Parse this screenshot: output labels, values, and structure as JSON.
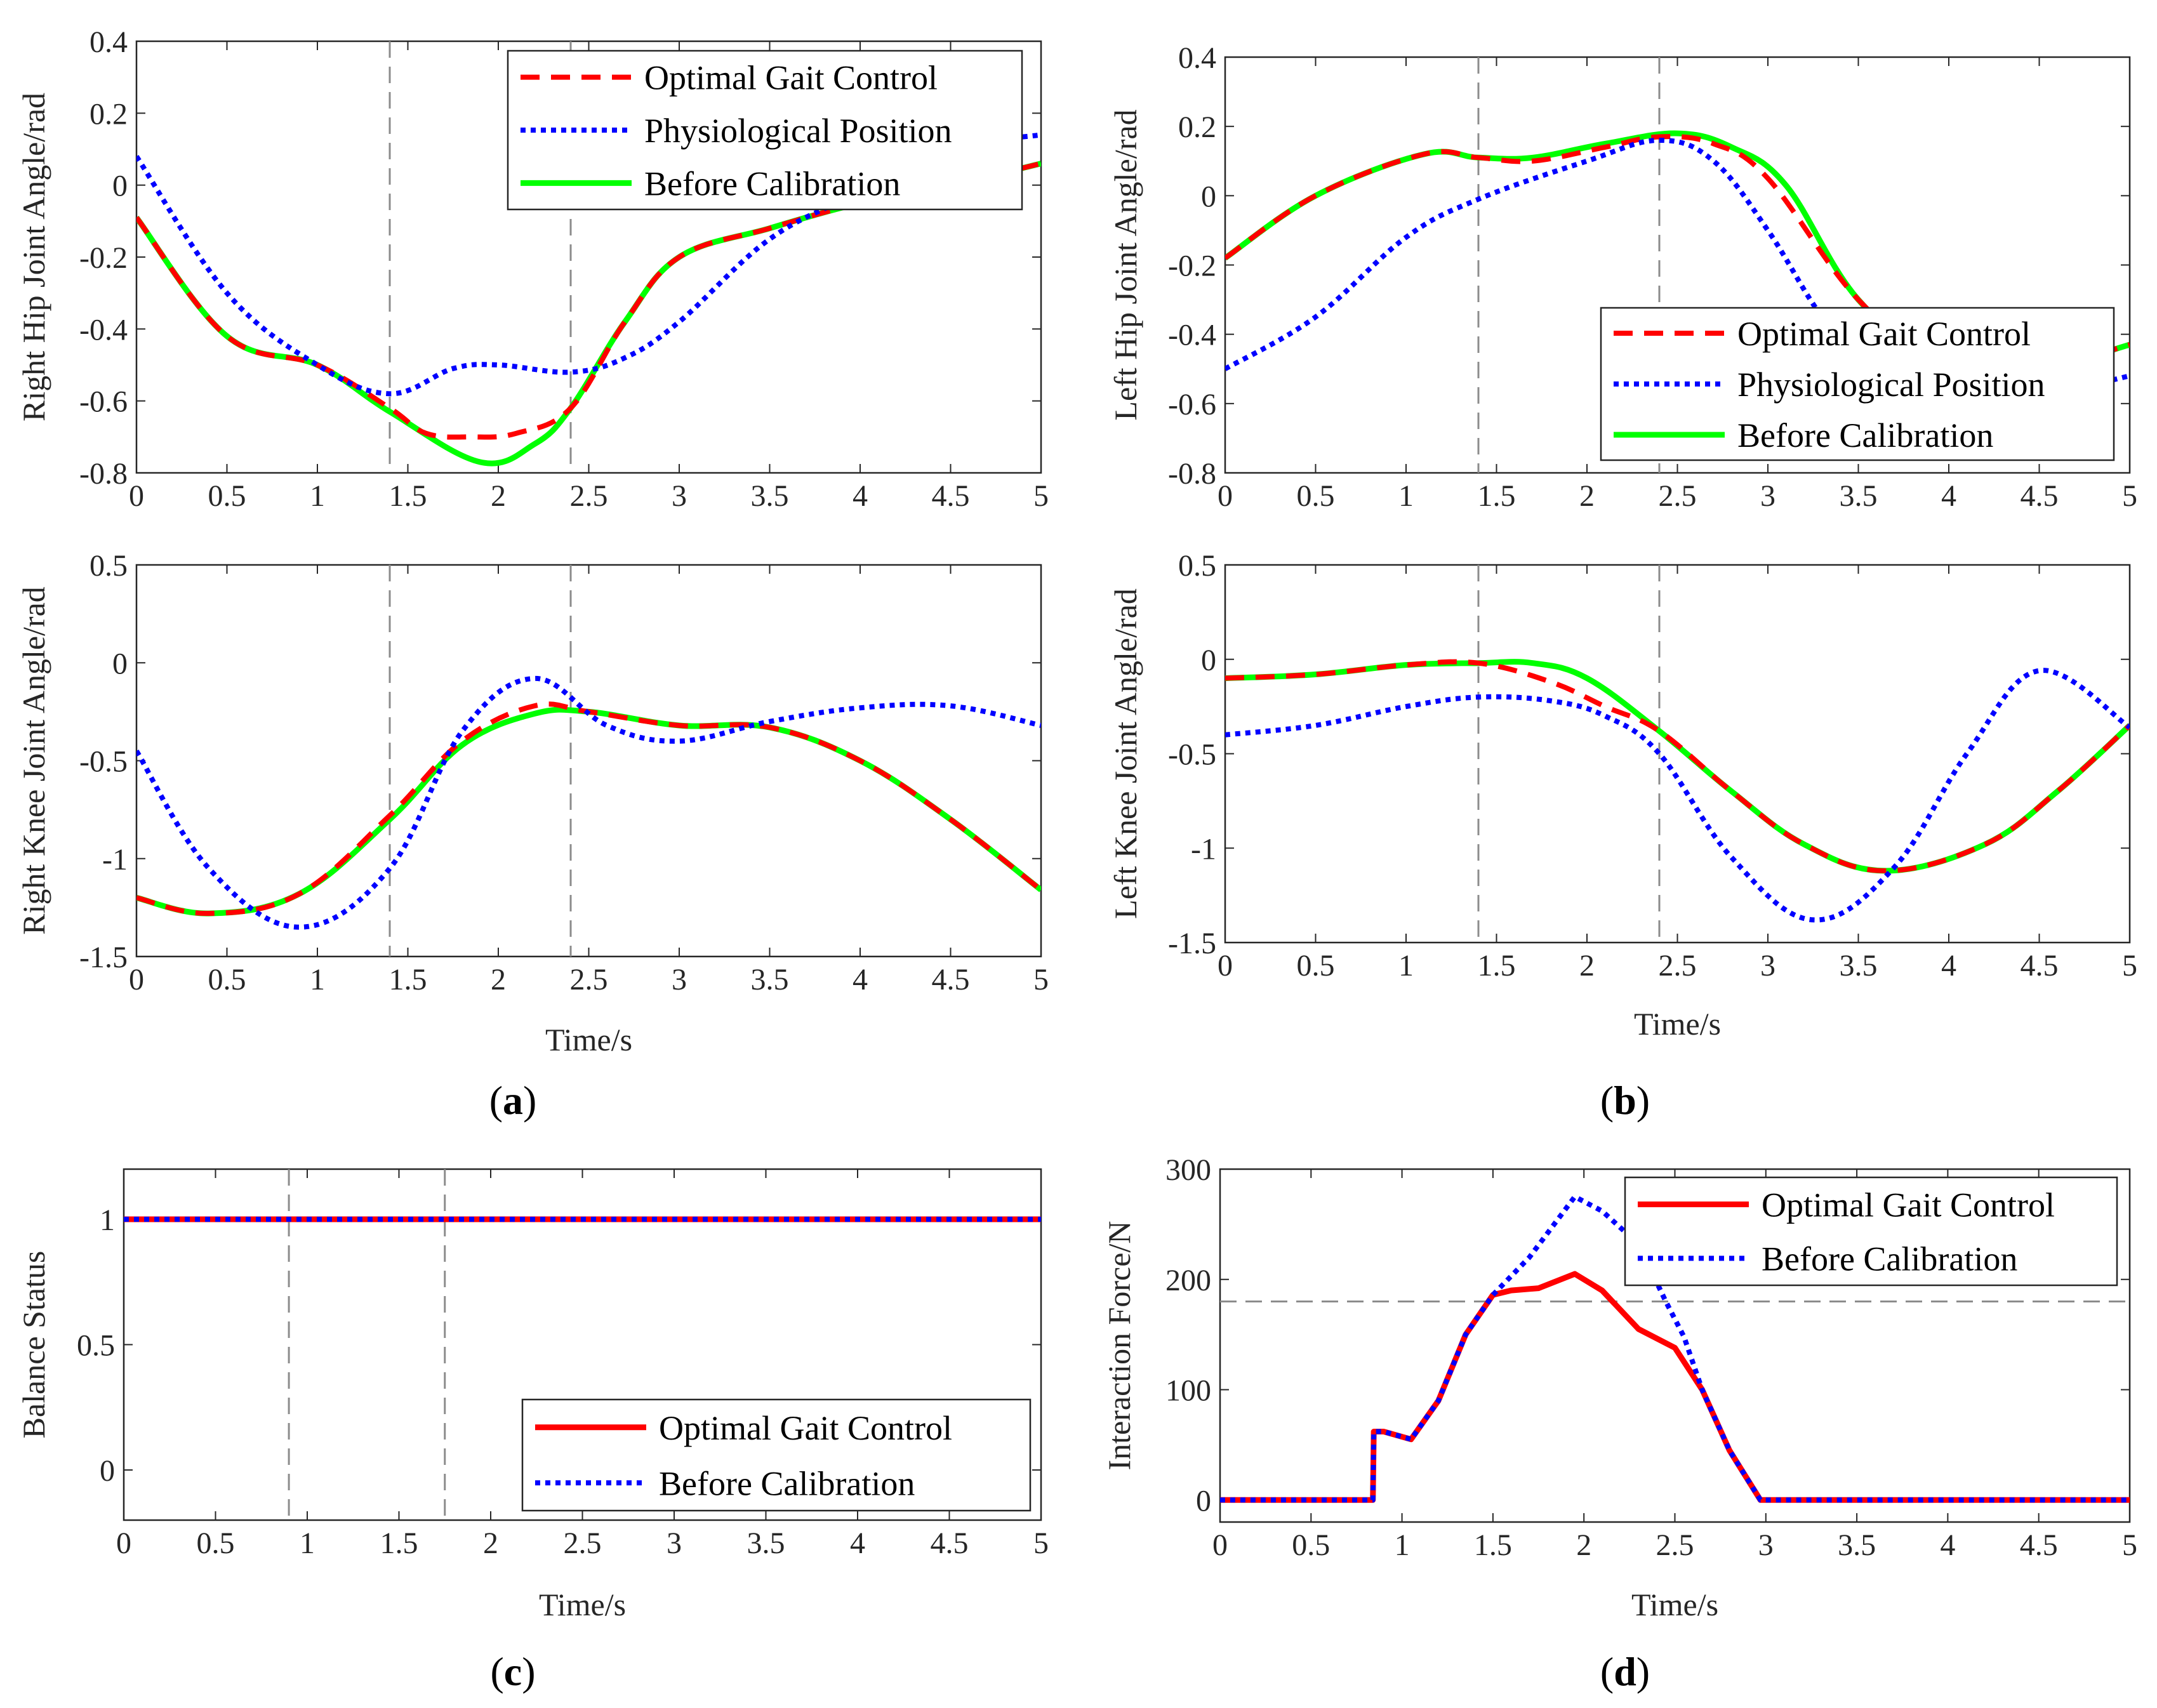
{
  "figure": {
    "panel_labels": [
      "a",
      "b",
      "c",
      "d"
    ]
  },
  "chart_data": [
    {
      "id": "a1",
      "type": "line",
      "title": "",
      "xlabel": "",
      "ylabel": "Right Hip Joint Angle/rad",
      "xlim": [
        0,
        5
      ],
      "ylim": [
        -0.8,
        0.4
      ],
      "xticks": [
        0,
        0.5,
        1,
        1.5,
        2,
        2.5,
        3,
        3.5,
        4,
        4.5,
        5
      ],
      "yticks": [
        -0.8,
        -0.6,
        -0.4,
        -0.2,
        0,
        0.2,
        0.4
      ],
      "vlines": [
        1.4,
        2.4
      ],
      "legend": "top-right",
      "series": [
        {
          "name": "Optimal Gait Control",
          "style": "dashed",
          "color": "#ff0000",
          "x": [
            0,
            0.5,
            1,
            1.4,
            1.6,
            1.85,
            2.1,
            2.4,
            2.7,
            3,
            3.5,
            4,
            4.5,
            5
          ],
          "y": [
            -0.09,
            -0.42,
            -0.5,
            -0.62,
            -0.69,
            -0.7,
            -0.69,
            -0.62,
            -0.38,
            -0.2,
            -0.12,
            -0.05,
            0,
            0.06
          ]
        },
        {
          "name": "Physiological Position",
          "style": "dotted",
          "color": "#0000ff",
          "x": [
            0,
            0.5,
            1,
            1.4,
            1.75,
            2,
            2.4,
            2.7,
            3,
            3.5,
            4,
            4.5,
            5
          ],
          "y": [
            0.08,
            -0.3,
            -0.5,
            -0.58,
            -0.51,
            -0.5,
            -0.52,
            -0.48,
            -0.38,
            -0.15,
            -0.02,
            0.1,
            0.14
          ]
        },
        {
          "name": "Before Calibration",
          "style": "solid",
          "color": "#00ff00",
          "x": [
            0,
            0.5,
            1,
            1.4,
            1.9,
            2.2,
            2.4,
            2.7,
            3,
            3.5,
            4,
            4.5,
            5
          ],
          "y": [
            -0.09,
            -0.42,
            -0.5,
            -0.63,
            -0.77,
            -0.72,
            -0.62,
            -0.38,
            -0.2,
            -0.12,
            -0.05,
            0,
            0.06
          ]
        }
      ]
    },
    {
      "id": "a2",
      "type": "line",
      "title": "",
      "xlabel": "Time/s",
      "ylabel": "Right Knee Joint Angle/rad",
      "xlim": [
        0,
        5
      ],
      "ylim": [
        -1.5,
        0.5
      ],
      "xticks": [
        0,
        0.5,
        1,
        1.5,
        2,
        2.5,
        3,
        3.5,
        4,
        4.5,
        5
      ],
      "yticks": [
        -1.5,
        -1,
        -0.5,
        0
      ],
      "ytick_labels": [
        "-1.5",
        "-1",
        "-0.5",
        "0",
        "0.5"
      ],
      "vlines": [
        1.4,
        2.4
      ],
      "series": [
        {
          "name": "Optimal Gait Control",
          "style": "dashed",
          "color": "#ff0000",
          "x": [
            0,
            0.4,
            0.9,
            1.4,
            1.8,
            2.2,
            2.5,
            3,
            3.5,
            4,
            4.5,
            5
          ],
          "y": [
            -1.2,
            -1.28,
            -1.18,
            -0.78,
            -0.4,
            -0.22,
            -0.25,
            -0.32,
            -0.33,
            -0.5,
            -0.8,
            -1.16
          ]
        },
        {
          "name": "Physiological Position",
          "style": "dotted",
          "color": "#0000ff",
          "x": [
            0,
            0.4,
            0.9,
            1.4,
            1.8,
            2.2,
            2.6,
            3,
            3.5,
            4,
            4.5,
            5
          ],
          "y": [
            -0.45,
            -1.05,
            -1.35,
            -1.05,
            -0.35,
            -0.08,
            -0.32,
            -0.4,
            -0.3,
            -0.23,
            -0.22,
            -0.32
          ]
        },
        {
          "name": "Before Calibration",
          "style": "solid",
          "color": "#00ff00",
          "x": [
            0,
            0.4,
            0.9,
            1.4,
            1.8,
            2.2,
            2.5,
            3,
            3.5,
            4,
            4.5,
            5
          ],
          "y": [
            -1.2,
            -1.28,
            -1.18,
            -0.8,
            -0.42,
            -0.26,
            -0.25,
            -0.32,
            -0.33,
            -0.5,
            -0.8,
            -1.16
          ]
        }
      ]
    },
    {
      "id": "b1",
      "type": "line",
      "title": "",
      "xlabel": "",
      "ylabel": "Left Hip Joint Angle/rad",
      "xlim": [
        0,
        5
      ],
      "ylim": [
        -0.8,
        0.4
      ],
      "xticks": [
        0,
        0.5,
        1,
        1.5,
        2,
        2.5,
        3,
        3.5,
        4,
        4.5,
        5
      ],
      "yticks": [
        -0.8,
        -0.6,
        -0.4,
        -0.2,
        0,
        0.2,
        0.4
      ],
      "vlines": [
        1.4,
        2.4
      ],
      "legend": "middle-right",
      "series": [
        {
          "name": "Optimal Gait Control",
          "style": "dashed",
          "color": "#ff0000",
          "x": [
            0,
            0.5,
            1.1,
            1.4,
            1.7,
            2.1,
            2.4,
            2.7,
            3,
            3.5,
            4,
            4.5,
            5
          ],
          "y": [
            -0.18,
            0,
            0.12,
            0.11,
            0.1,
            0.14,
            0.17,
            0.15,
            0.05,
            -0.3,
            -0.5,
            -0.5,
            -0.43
          ]
        },
        {
          "name": "Physiological Position",
          "style": "dotted",
          "color": "#0000ff",
          "x": [
            0,
            0.5,
            1,
            1.4,
            2,
            2.4,
            2.7,
            3,
            3.3,
            3.6,
            4,
            4.5,
            5
          ],
          "y": [
            -0.5,
            -0.35,
            -0.12,
            -0.01,
            0.1,
            0.16,
            0.1,
            -0.1,
            -0.35,
            -0.52,
            -0.62,
            -0.58,
            -0.52
          ]
        },
        {
          "name": "Before Calibration",
          "style": "solid",
          "color": "#00ff00",
          "x": [
            0,
            0.5,
            1.1,
            1.4,
            1.7,
            2.1,
            2.5,
            2.8,
            3.1,
            3.5,
            4,
            4.5,
            5
          ],
          "y": [
            -0.18,
            0,
            0.12,
            0.11,
            0.11,
            0.15,
            0.18,
            0.14,
            0.03,
            -0.3,
            -0.5,
            -0.5,
            -0.43
          ]
        }
      ]
    },
    {
      "id": "b2",
      "type": "line",
      "title": "",
      "xlabel": "Time/s",
      "ylabel": "Left Knee Joint Angle/rad",
      "xlim": [
        0,
        5
      ],
      "ylim": [
        -1.5,
        0.5
      ],
      "xticks": [
        0,
        0.5,
        1,
        1.5,
        2,
        2.5,
        3,
        3.5,
        4,
        4.5,
        5
      ],
      "yticks": [
        -1.5,
        -1,
        -0.5,
        0
      ],
      "ytick_labels": [
        "-1.5",
        "-1",
        "-0.5",
        "0",
        "0.5"
      ],
      "vlines": [
        1.4,
        2.4
      ],
      "series": [
        {
          "name": "Optimal Gait Control",
          "style": "dashed",
          "color": "#ff0000",
          "x": [
            0,
            0.5,
            1,
            1.4,
            1.8,
            2.1,
            2.4,
            2.8,
            3.2,
            3.65,
            4.2,
            4.6,
            5
          ],
          "y": [
            -0.1,
            -0.08,
            -0.03,
            -0.02,
            -0.12,
            -0.25,
            -0.38,
            -0.7,
            -0.98,
            -1.12,
            -0.98,
            -0.7,
            -0.35
          ]
        },
        {
          "name": "Physiological Position",
          "style": "dotted",
          "color": "#0000ff",
          "x": [
            0,
            0.5,
            1,
            1.4,
            1.8,
            2.1,
            2.4,
            2.8,
            3.25,
            3.7,
            4.1,
            4.5,
            5
          ],
          "y": [
            -0.4,
            -0.35,
            -0.25,
            -0.2,
            -0.22,
            -0.3,
            -0.5,
            -1.05,
            -1.38,
            -1.1,
            -0.5,
            -0.06,
            -0.36
          ]
        },
        {
          "name": "Before Calibration",
          "style": "solid",
          "color": "#00ff00",
          "x": [
            0,
            0.5,
            1,
            1.4,
            1.7,
            2,
            2.4,
            2.8,
            3.2,
            3.65,
            4.2,
            4.6,
            5
          ],
          "y": [
            -0.1,
            -0.08,
            -0.03,
            -0.02,
            -0.02,
            -0.1,
            -0.38,
            -0.7,
            -0.98,
            -1.12,
            -0.98,
            -0.7,
            -0.35
          ]
        }
      ]
    },
    {
      "id": "c",
      "type": "line",
      "title": "",
      "xlabel": "Time/s",
      "ylabel": "Balance Status",
      "xlim": [
        0,
        5
      ],
      "ylim": [
        -0.2,
        1.2
      ],
      "xticks": [
        0,
        0.5,
        1,
        1.5,
        2,
        2.5,
        3,
        3.5,
        4,
        4.5,
        5
      ],
      "yticks": [
        0,
        0.5,
        1
      ],
      "vlines": [
        0.9,
        1.75
      ],
      "legend": "bottom-right",
      "series": [
        {
          "name": "Optimal Gait Control",
          "style": "solid",
          "color": "#ff0000",
          "x": [
            0,
            5
          ],
          "y": [
            1,
            1
          ]
        },
        {
          "name": "Before Calibration",
          "style": "dotted",
          "color": "#0000ff",
          "x": [
            0,
            5
          ],
          "y": [
            1,
            1
          ]
        }
      ]
    },
    {
      "id": "d",
      "type": "line",
      "title": "",
      "xlabel": "Time/s",
      "ylabel": "Interaction Force/N",
      "xlim": [
        0,
        5
      ],
      "ylim": [
        -20,
        300
      ],
      "xticks": [
        0,
        0.5,
        1,
        1.5,
        2,
        2.5,
        3,
        3.5,
        4,
        4.5,
        5
      ],
      "yticks": [
        0,
        100,
        200,
        300
      ],
      "hlines": [
        180
      ],
      "legend": "top-right",
      "series": [
        {
          "name": "Optimal Gait Control",
          "style": "solid",
          "color": "#ff0000",
          "x": [
            0,
            0.84,
            0.845,
            0.9,
            1.05,
            1.2,
            1.35,
            1.5,
            1.6,
            1.75,
            1.95,
            2.1,
            2.3,
            2.5,
            2.65,
            2.8,
            2.97,
            5
          ],
          "y": [
            0,
            0,
            62,
            62,
            55,
            90,
            150,
            186,
            190,
            192,
            205,
            190,
            155,
            138,
            100,
            45,
            0,
            0
          ]
        },
        {
          "name": "Before Calibration",
          "style": "dotted",
          "color": "#0000ff",
          "x": [
            0,
            0.84,
            0.845,
            0.9,
            1.05,
            1.2,
            1.35,
            1.5,
            1.7,
            1.95,
            2.1,
            2.3,
            2.45,
            2.55,
            2.65,
            2.8,
            2.97,
            5
          ],
          "y": [
            0,
            0,
            62,
            62,
            55,
            90,
            150,
            186,
            220,
            275,
            262,
            232,
            180,
            148,
            100,
            45,
            0,
            0
          ]
        }
      ]
    }
  ]
}
